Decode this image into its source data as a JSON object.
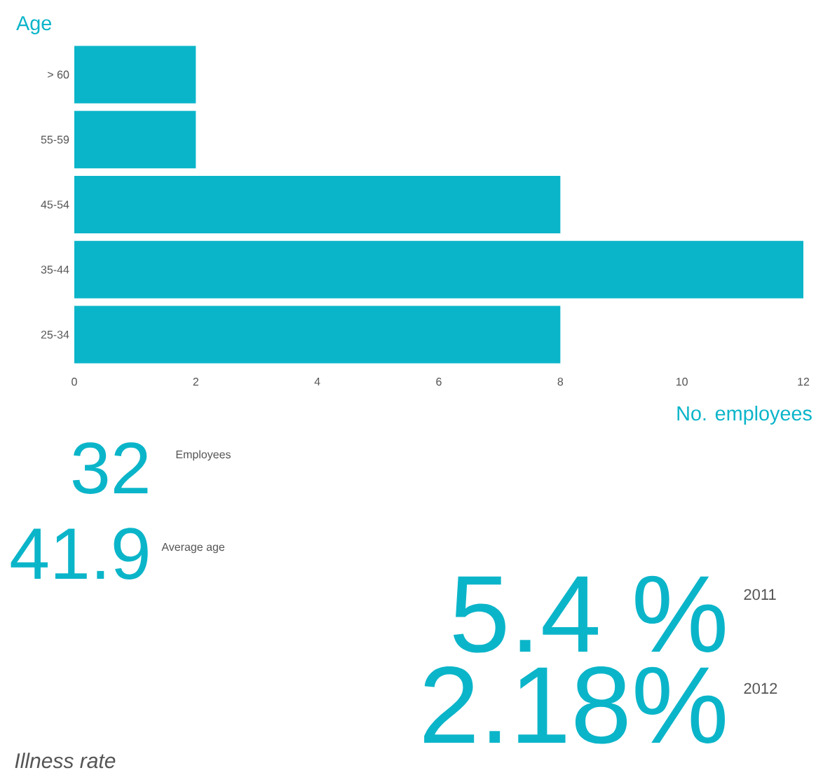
{
  "chart_data": {
    "type": "bar",
    "orientation": "horizontal",
    "categories": [
      "> 60",
      "55-59",
      "45-54",
      "35-44",
      "25-34"
    ],
    "values": [
      2,
      2,
      8,
      12,
      8
    ],
    "color": "#0bb5c9",
    "xlim": [
      0,
      12
    ],
    "xticks": [
      0,
      2,
      4,
      6,
      8,
      10,
      12
    ],
    "xlabel": "No. employees",
    "ylabel": "Age",
    "annotations": [
      "32",
      "Employees",
      "41.9",
      "Average age",
      "5.4 %",
      "2011",
      "2.18%",
      "2012",
      "Illness rate"
    ]
  }
}
